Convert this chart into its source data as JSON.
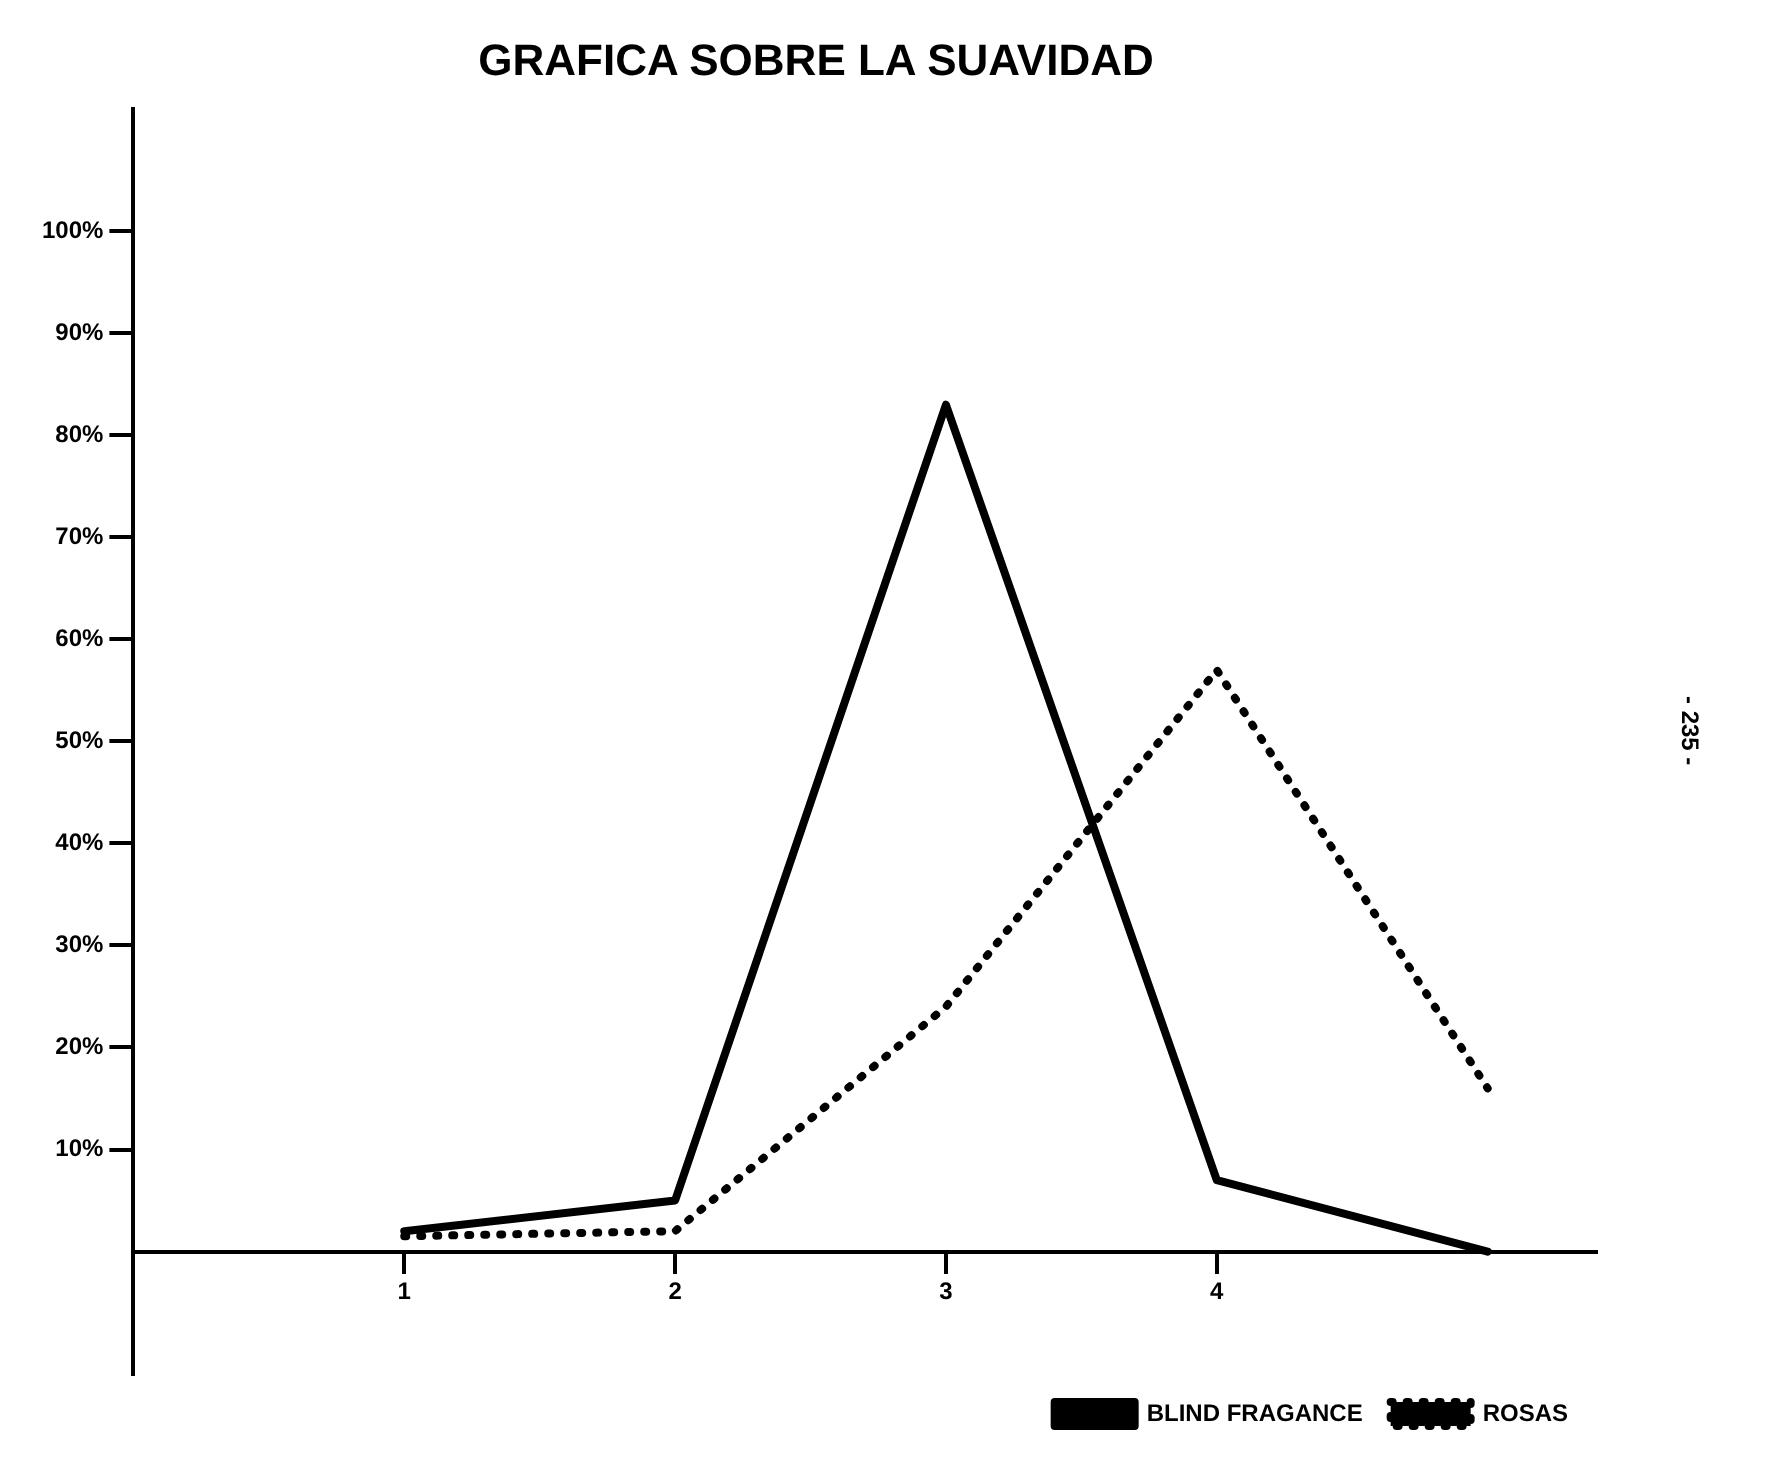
{
  "chart_data": {
    "type": "line",
    "title": "GRAFICA SOBRE LA SUAVIDAD",
    "x": [
      1,
      2,
      3,
      4,
      5
    ],
    "xlim": [
      0,
      5.4
    ],
    "xticks": [
      1,
      2,
      3,
      4
    ],
    "ylim": [
      -12,
      112
    ],
    "yticks": [
      {
        "value": 10,
        "label": "10%"
      },
      {
        "value": 20,
        "label": "20%"
      },
      {
        "value": 30,
        "label": "30%"
      },
      {
        "value": 40,
        "label": "40%"
      },
      {
        "value": 50,
        "label": "50%"
      },
      {
        "value": 60,
        "label": "60%"
      },
      {
        "value": 70,
        "label": "70%"
      },
      {
        "value": 80,
        "label": "80%"
      },
      {
        "value": 90,
        "label": "90%"
      },
      {
        "value": 100,
        "label": "100%"
      }
    ],
    "series": [
      {
        "name": "BLIND FRAGANCE",
        "color": "#000000",
        "line_style": "solid",
        "values": [
          2,
          5,
          83,
          7,
          0
        ]
      },
      {
        "name": "ROSAS",
        "color": "#000000",
        "line_style": "dotted",
        "values": [
          1.5,
          2,
          24,
          57,
          16
        ]
      }
    ],
    "grid": false,
    "legend": "bottom right",
    "marker": "none",
    "annotations": [
      "- 235 -"
    ]
  }
}
